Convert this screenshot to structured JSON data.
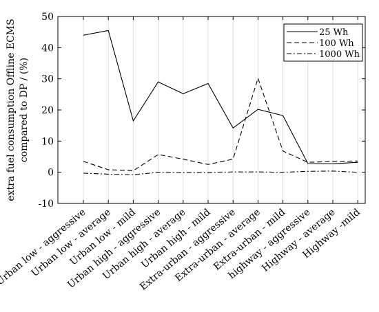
{
  "chart_data": {
    "type": "line",
    "ylabel_lines": [
      "extra fuel consumption Offline ECMS",
      "compared to DP / (%)"
    ],
    "ylim": [
      -10,
      50
    ],
    "yticks": [
      -10,
      0,
      10,
      20,
      30,
      40,
      50
    ],
    "grid": "vertical",
    "legend_position": "top-right",
    "categories": [
      "Urban low - aggressive",
      "Urban low - average",
      "Urban low - mild",
      "Urban high - aggressive",
      "Urban high - average",
      "Urban high - mild",
      "Extra-urban - aggressive",
      "Extra-urban - average",
      "Extra-urban - mild",
      "highway - aggressive",
      "Highway - average",
      "Highway -mild"
    ],
    "series": [
      {
        "name": "25 Wh",
        "dash": "solid",
        "values": [
          44,
          45.5,
          16.5,
          29,
          25.2,
          28.5,
          14.2,
          20.2,
          18.2,
          2.8,
          2.7,
          3.2
        ]
      },
      {
        "name": "100 Wh",
        "dash": "dashed",
        "values": [
          3.5,
          0.8,
          0.5,
          5.7,
          4.2,
          2.5,
          4.2,
          30.2,
          6.8,
          3.2,
          3.5,
          3.6
        ]
      },
      {
        "name": "1000 Wh",
        "dash": "dashdot",
        "values": [
          -0.3,
          -0.6,
          -0.8,
          0,
          -0.1,
          -0.1,
          0.1,
          0.1,
          0,
          0.3,
          0.4,
          0
        ]
      }
    ]
  }
}
